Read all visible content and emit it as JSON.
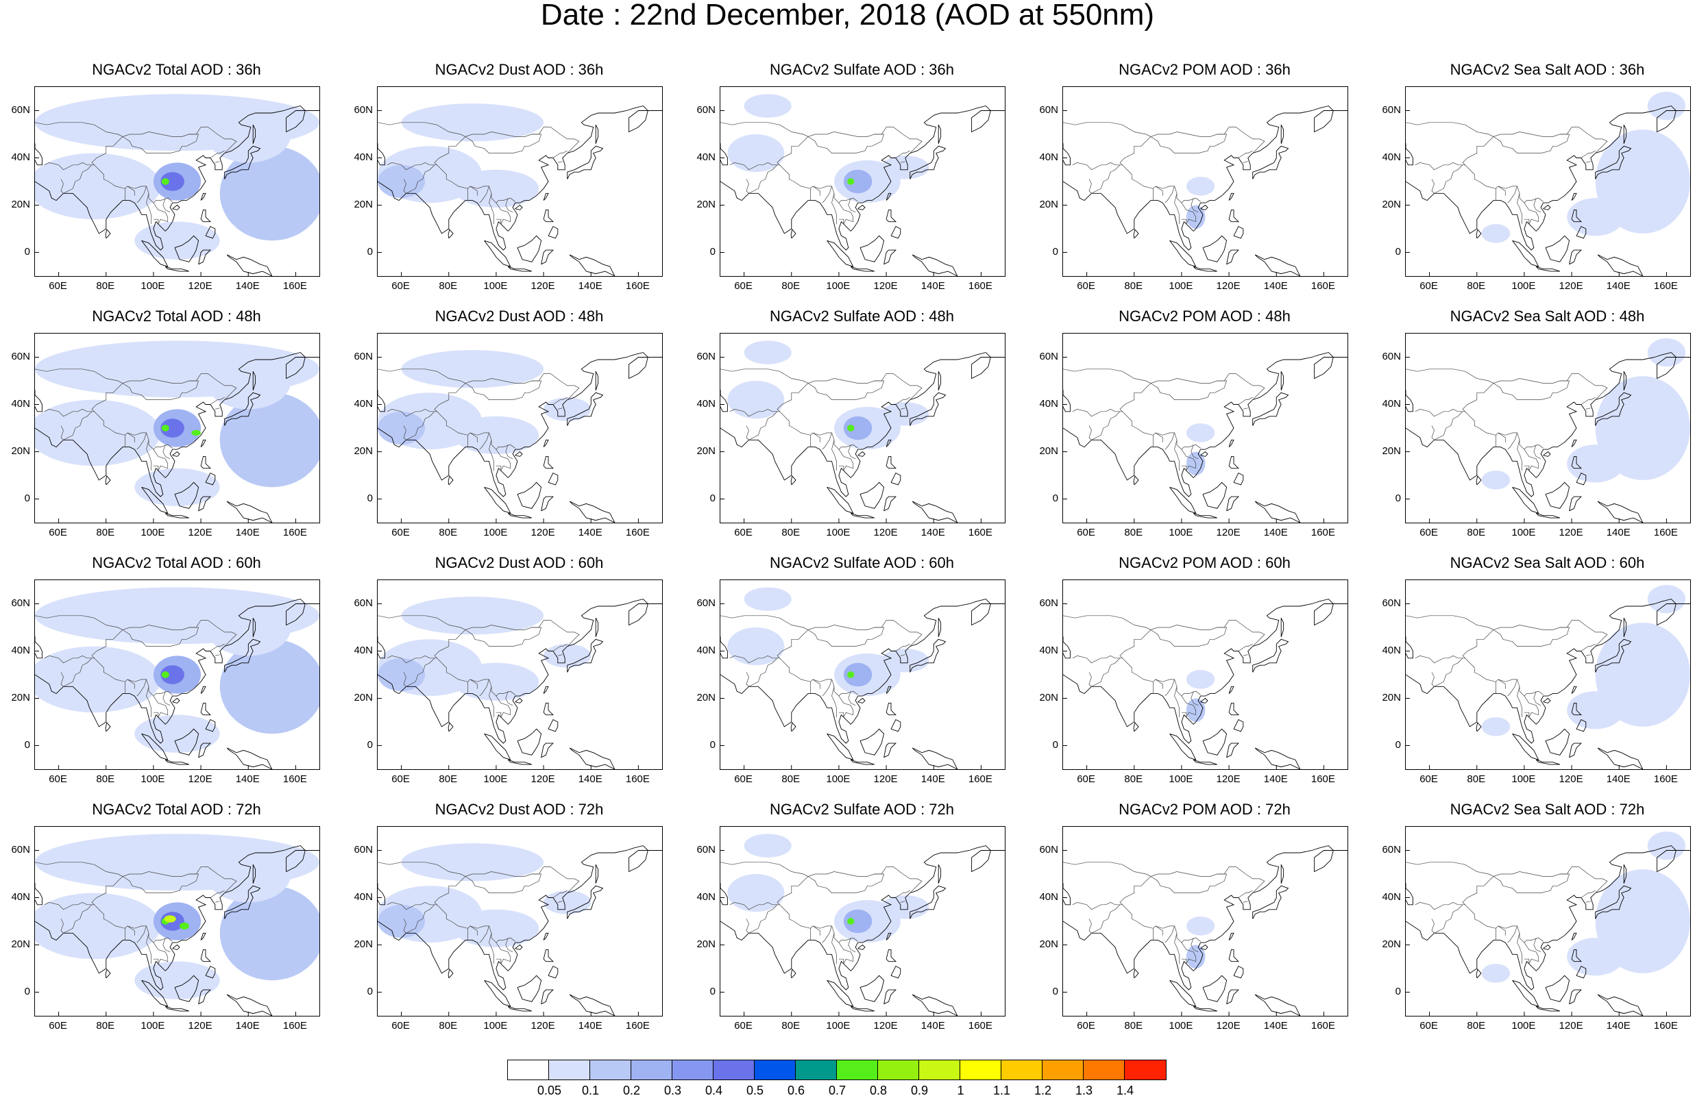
{
  "title": "Date : 22nd December, 2018 (AOD at 550nm)",
  "panels": [
    {
      "title": "NGACv2 Total AOD : 36h",
      "species": "total",
      "hour": 36
    },
    {
      "title": "NGACv2 Dust AOD : 36h",
      "species": "dust",
      "hour": 36
    },
    {
      "title": "NGACv2 Sulfate AOD : 36h",
      "species": "sulfate",
      "hour": 36
    },
    {
      "title": "NGACv2 POM AOD : 36h",
      "species": "pom",
      "hour": 36
    },
    {
      "title": "NGACv2 Sea Salt AOD : 36h",
      "species": "seasalt",
      "hour": 36
    },
    {
      "title": "NGACv2 Total AOD : 48h",
      "species": "total",
      "hour": 48
    },
    {
      "title": "NGACv2 Dust AOD : 48h",
      "species": "dust",
      "hour": 48
    },
    {
      "title": "NGACv2 Sulfate AOD : 48h",
      "species": "sulfate",
      "hour": 48
    },
    {
      "title": "NGACv2 POM AOD : 48h",
      "species": "pom",
      "hour": 48
    },
    {
      "title": "NGACv2 Sea Salt AOD : 48h",
      "species": "seasalt",
      "hour": 48
    },
    {
      "title": "NGACv2 Total AOD : 60h",
      "species": "total",
      "hour": 60
    },
    {
      "title": "NGACv2 Dust AOD : 60h",
      "species": "dust",
      "hour": 60
    },
    {
      "title": "NGACv2 Sulfate AOD : 60h",
      "species": "sulfate",
      "hour": 60
    },
    {
      "title": "NGACv2 POM AOD : 60h",
      "species": "pom",
      "hour": 60
    },
    {
      "title": "NGACv2 Sea Salt AOD : 60h",
      "species": "seasalt",
      "hour": 60
    },
    {
      "title": "NGACv2 Total AOD : 72h",
      "species": "total",
      "hour": 72
    },
    {
      "title": "NGACv2 Dust AOD : 72h",
      "species": "dust",
      "hour": 72
    },
    {
      "title": "NGACv2 Sulfate AOD : 72h",
      "species": "sulfate",
      "hour": 72
    },
    {
      "title": "NGACv2 POM AOD : 72h",
      "species": "pom",
      "hour": 72
    },
    {
      "title": "NGACv2 Sea Salt  AOD : 72h",
      "species": "seasalt",
      "hour": 72
    }
  ],
  "map": {
    "lon_range": [
      50,
      170
    ],
    "lat_range": [
      -10,
      70
    ],
    "x_ticks": [
      {
        "value": 60,
        "label": "60E"
      },
      {
        "value": 80,
        "label": "80E"
      },
      {
        "value": 100,
        "label": "100E"
      },
      {
        "value": 120,
        "label": "120E"
      },
      {
        "value": 140,
        "label": "140E"
      },
      {
        "value": 160,
        "label": "160E"
      }
    ],
    "y_ticks": [
      {
        "value": 0,
        "label": "0"
      },
      {
        "value": 20,
        "label": "20N"
      },
      {
        "value": 40,
        "label": "40N"
      },
      {
        "value": 60,
        "label": "60N"
      }
    ]
  },
  "colorbar": {
    "colors": [
      "#ffffff",
      "#d8e1fb",
      "#b9c9f6",
      "#9fb2f2",
      "#8597f0",
      "#6a73e9",
      "#0055ea",
      "#009a8c",
      "#55ee1b",
      "#95f00f",
      "#caf815",
      "#ffff00",
      "#ffcc00",
      "#ffa000",
      "#ff7800",
      "#ff2200"
    ],
    "labels": [
      "0.05",
      "0.1",
      "0.2",
      "0.3",
      "0.4",
      "0.5",
      "0.6",
      "0.7",
      "0.8",
      "0.9",
      "1",
      "1.1",
      "1.2",
      "1.3",
      "1.4"
    ]
  }
}
